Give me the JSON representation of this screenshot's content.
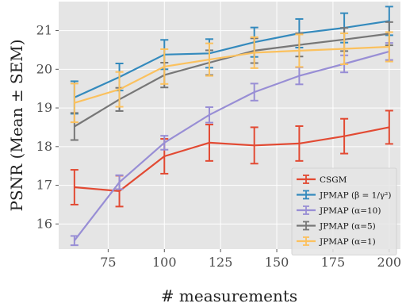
{
  "chart_data": {
    "type": "line",
    "xlabel": "# measurements",
    "ylabel": "PSNR (Mean ± SEM)",
    "x": [
      60,
      80,
      100,
      120,
      140,
      160,
      180,
      200
    ],
    "xlim": [
      53,
      205
    ],
    "ylim": [
      15.35,
      21.75
    ],
    "xticks": [
      75,
      100,
      125,
      150,
      175,
      200
    ],
    "yticks": [
      16,
      17,
      18,
      19,
      20,
      21
    ],
    "grid": true,
    "background": "#e5e5e5",
    "legend_position": "lower-right",
    "series": [
      {
        "name": "CSGM",
        "color": "#e24a33",
        "values": [
          16.95,
          16.85,
          17.75,
          18.1,
          18.03,
          18.08,
          18.27,
          18.5
        ],
        "err": [
          0.45,
          0.4,
          0.45,
          0.47,
          0.47,
          0.45,
          0.45,
          0.43
        ]
      },
      {
        "name": "JPMAP (β = 1/γ²)",
        "color": "#348abd",
        "values": [
          19.27,
          19.8,
          20.38,
          20.41,
          20.7,
          20.93,
          21.07,
          21.25
        ],
        "err": [
          0.42,
          0.35,
          0.38,
          0.37,
          0.38,
          0.37,
          0.38,
          0.37
        ]
      },
      {
        "name": "JPMAP (α=10)",
        "color": "#988ed5",
        "values": [
          15.57,
          17.08,
          18.1,
          18.82,
          19.41,
          19.83,
          20.14,
          20.46
        ],
        "err": [
          0.12,
          0.18,
          0.18,
          0.2,
          0.22,
          0.22,
          0.22,
          0.22
        ]
      },
      {
        "name": "JPMAP (α=5)",
        "color": "#777777",
        "values": [
          18.52,
          19.22,
          19.85,
          20.17,
          20.48,
          20.63,
          20.77,
          20.92
        ],
        "err": [
          0.35,
          0.3,
          0.32,
          0.32,
          0.32,
          0.3,
          0.3,
          0.3
        ]
      },
      {
        "name": "JPMAP (α=1)",
        "color": "#fbc15e",
        "values": [
          19.13,
          19.48,
          20.07,
          20.25,
          20.43,
          20.48,
          20.53,
          20.58
        ],
        "err": [
          0.5,
          0.45,
          0.45,
          0.42,
          0.4,
          0.42,
          0.4,
          0.38
        ]
      }
    ]
  }
}
